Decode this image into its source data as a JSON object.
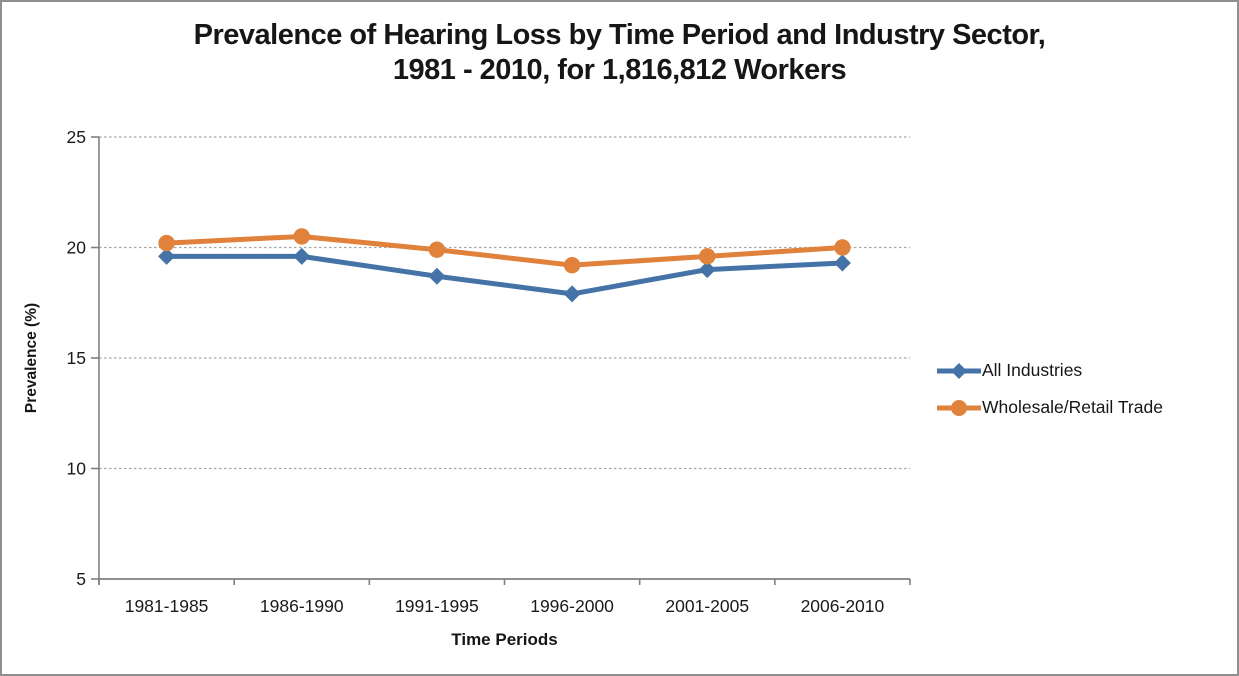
{
  "window": {
    "background_color": "#FFFFFF",
    "frame_border_color": "#8F8F8F"
  },
  "chart_data": {
    "type": "line",
    "title_line1": "Prevalence of Hearing Loss by Time Period and Industry Sector,",
    "title_line2": "1981 - 2010, for 1,816,812 Workers",
    "xlabel": "Time Periods",
    "ylabel": "Prevalence (%)",
    "categories": [
      "1981-1985",
      "1986-1990",
      "1991-1995",
      "1996-2000",
      "2001-2005",
      "2006-2010"
    ],
    "series": [
      {
        "name": "All Industries",
        "color": "#4573A7",
        "marker": "diamond",
        "values": [
          19.6,
          19.6,
          18.7,
          17.9,
          19.0,
          19.3
        ]
      },
      {
        "name": "Wholesale/Retail Trade",
        "color": "#E0813C",
        "marker": "circle",
        "values": [
          20.2,
          20.5,
          19.9,
          19.2,
          19.6,
          20.0
        ]
      }
    ],
    "ylim": [
      5,
      25
    ],
    "yticks": [
      25,
      20,
      15,
      10,
      5
    ],
    "grid": "horizontal-dashed",
    "gridline_color": "#A6A6A6",
    "axis_color": "#808080",
    "tick_label_color": "#1A1A1A",
    "legend_position": "right"
  }
}
